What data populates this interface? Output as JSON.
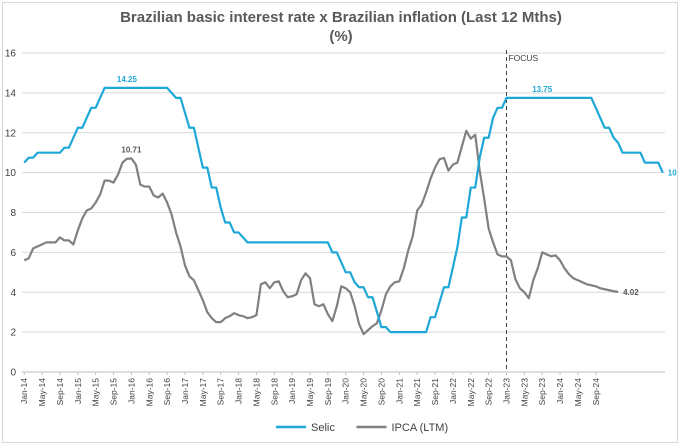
{
  "chart_data": {
    "type": "line",
    "title_line1": "Brazilian basic interest rate x Brazilian inflation (Last 12 Mths)",
    "title_line2": "(%)",
    "xlabel": "",
    "ylabel": "",
    "ylim": [
      0,
      16
    ],
    "yticks": [
      0,
      2,
      4,
      6,
      8,
      10,
      12,
      14,
      16
    ],
    "x_tick_labels": [
      "Jan-14",
      "May-14",
      "Sep-14",
      "Jan-15",
      "May-15",
      "Sep-15",
      "Jan-16",
      "May-16",
      "Sep-16",
      "Jan-17",
      "May-17",
      "Sep-17",
      "Jan-18",
      "May-18",
      "Sep-18",
      "Jan-19",
      "May-19",
      "Sep-19",
      "Jan-20",
      "May-20",
      "Sep-20",
      "Jan-21",
      "May-21",
      "Sep-21",
      "Jan-22",
      "May-22",
      "Sep-22",
      "Jan-23",
      "May-23",
      "Sep-23",
      "Jan-24",
      "May-24",
      "Sep-24"
    ],
    "grid": "horizontal",
    "legend_position": "bottom",
    "series": [
      {
        "name": "Selic",
        "color": "#1ea8d8",
        "values": [
          [
            0,
            10.5
          ],
          [
            1,
            10.75
          ],
          [
            2,
            10.75
          ],
          [
            3,
            11
          ],
          [
            4,
            11
          ],
          [
            5,
            11
          ],
          [
            6,
            11
          ],
          [
            7,
            11
          ],
          [
            8,
            11
          ],
          [
            9,
            11.25
          ],
          [
            10,
            11.25
          ],
          [
            11,
            11.75
          ],
          [
            12,
            12.25
          ],
          [
            13,
            12.25
          ],
          [
            14,
            12.75
          ],
          [
            15,
            13.25
          ],
          [
            16,
            13.25
          ],
          [
            17,
            13.75
          ],
          [
            18,
            14.25
          ],
          [
            19,
            14.25
          ],
          [
            20,
            14.25
          ],
          [
            21,
            14.25
          ],
          [
            22,
            14.25
          ],
          [
            23,
            14.25
          ],
          [
            24,
            14.25
          ],
          [
            25,
            14.25
          ],
          [
            26,
            14.25
          ],
          [
            27,
            14.25
          ],
          [
            28,
            14.25
          ],
          [
            29,
            14.25
          ],
          [
            30,
            14.25
          ],
          [
            31,
            14.25
          ],
          [
            32,
            14.25
          ],
          [
            33,
            14
          ],
          [
            34,
            13.75
          ],
          [
            35,
            13.75
          ],
          [
            36,
            13
          ],
          [
            37,
            12.25
          ],
          [
            38,
            12.25
          ],
          [
            39,
            11.25
          ],
          [
            40,
            10.25
          ],
          [
            41,
            10.25
          ],
          [
            42,
            9.25
          ],
          [
            43,
            9.25
          ],
          [
            44,
            8.25
          ],
          [
            45,
            7.5
          ],
          [
            46,
            7.5
          ],
          [
            47,
            7
          ],
          [
            48,
            7
          ],
          [
            49,
            6.75
          ],
          [
            50,
            6.5
          ],
          [
            51,
            6.5
          ],
          [
            52,
            6.5
          ],
          [
            53,
            6.5
          ],
          [
            54,
            6.5
          ],
          [
            55,
            6.5
          ],
          [
            56,
            6.5
          ],
          [
            57,
            6.5
          ],
          [
            58,
            6.5
          ],
          [
            59,
            6.5
          ],
          [
            60,
            6.5
          ],
          [
            61,
            6.5
          ],
          [
            62,
            6.5
          ],
          [
            63,
            6.5
          ],
          [
            64,
            6.5
          ],
          [
            65,
            6.5
          ],
          [
            66,
            6.5
          ],
          [
            67,
            6.5
          ],
          [
            68,
            6.5
          ],
          [
            69,
            6
          ],
          [
            70,
            6
          ],
          [
            71,
            5.5
          ],
          [
            72,
            5
          ],
          [
            73,
            5
          ],
          [
            74,
            4.5
          ],
          [
            75,
            4.25
          ],
          [
            76,
            4.25
          ],
          [
            77,
            3.75
          ],
          [
            78,
            3.75
          ],
          [
            79,
            3
          ],
          [
            80,
            2.25
          ],
          [
            81,
            2.25
          ],
          [
            82,
            2
          ],
          [
            83,
            2
          ],
          [
            84,
            2
          ],
          [
            85,
            2
          ],
          [
            86,
            2
          ],
          [
            87,
            2
          ],
          [
            88,
            2
          ],
          [
            89,
            2
          ],
          [
            90,
            2
          ],
          [
            91,
            2.75
          ],
          [
            92,
            2.75
          ],
          [
            93,
            3.5
          ],
          [
            94,
            4.25
          ],
          [
            95,
            4.25
          ],
          [
            96,
            5.25
          ],
          [
            97,
            6.25
          ],
          [
            98,
            7.75
          ],
          [
            99,
            7.75
          ],
          [
            100,
            9.25
          ],
          [
            101,
            9.25
          ],
          [
            102,
            10.75
          ],
          [
            103,
            11.75
          ],
          [
            104,
            11.75
          ],
          [
            105,
            12.75
          ],
          [
            106,
            13.25
          ],
          [
            107,
            13.25
          ],
          [
            108,
            13.75
          ],
          [
            109,
            13.75
          ],
          [
            110,
            13.75
          ],
          [
            111,
            13.75
          ],
          [
            112,
            13.75
          ],
          [
            113,
            13.75
          ],
          [
            114,
            13.75
          ],
          [
            115,
            13.75
          ],
          [
            116,
            13.75
          ],
          [
            117,
            13.75
          ],
          [
            118,
            13.75
          ],
          [
            119,
            13.75
          ],
          [
            120,
            13.75
          ],
          [
            121,
            13.75
          ],
          [
            122,
            13.75
          ],
          [
            123,
            13.75
          ],
          [
            124,
            13.75
          ],
          [
            125,
            13.75
          ],
          [
            126,
            13.75
          ],
          [
            127,
            13.75
          ],
          [
            128,
            13.25
          ],
          [
            129,
            12.75
          ],
          [
            130,
            12.25
          ],
          [
            131,
            12.25
          ],
          [
            132,
            11.75
          ],
          [
            133,
            11.5
          ],
          [
            134,
            11
          ],
          [
            135,
            11
          ],
          [
            136,
            11
          ],
          [
            137,
            11
          ],
          [
            138,
            11
          ],
          [
            139,
            10.5
          ],
          [
            140,
            10.5
          ],
          [
            141,
            10.5
          ],
          [
            142,
            10.5
          ],
          [
            143,
            10
          ]
        ]
      },
      {
        "name": "IPCA (LTM)",
        "color": "#808080",
        "values": [
          [
            0,
            5.6
          ],
          [
            1,
            5.7
          ],
          [
            2,
            6.2
          ],
          [
            3,
            6.3
          ],
          [
            4,
            6.4
          ],
          [
            5,
            6.5
          ],
          [
            6,
            6.5
          ],
          [
            7,
            6.5
          ],
          [
            8,
            6.75
          ],
          [
            9,
            6.6
          ],
          [
            10,
            6.6
          ],
          [
            11,
            6.4
          ],
          [
            12,
            7.1
          ],
          [
            13,
            7.7
          ],
          [
            14,
            8.1
          ],
          [
            15,
            8.2
          ],
          [
            16,
            8.5
          ],
          [
            17,
            8.9
          ],
          [
            18,
            9.6
          ],
          [
            19,
            9.6
          ],
          [
            20,
            9.5
          ],
          [
            21,
            9.9
          ],
          [
            22,
            10.5
          ],
          [
            23,
            10.7
          ],
          [
            24,
            10.71
          ],
          [
            25,
            10.4
          ],
          [
            26,
            9.4
          ],
          [
            27,
            9.3
          ],
          [
            28,
            9.3
          ],
          [
            29,
            8.85
          ],
          [
            30,
            8.75
          ],
          [
            31,
            8.95
          ],
          [
            32,
            8.5
          ],
          [
            33,
            7.9
          ],
          [
            34,
            7.0
          ],
          [
            35,
            6.3
          ],
          [
            36,
            5.35
          ],
          [
            37,
            4.8
          ],
          [
            38,
            4.6
          ],
          [
            39,
            4.1
          ],
          [
            40,
            3.6
          ],
          [
            41,
            3.0
          ],
          [
            42,
            2.7
          ],
          [
            43,
            2.5
          ],
          [
            44,
            2.5
          ],
          [
            45,
            2.7
          ],
          [
            46,
            2.8
          ],
          [
            47,
            2.95
          ],
          [
            48,
            2.85
          ],
          [
            49,
            2.8
          ],
          [
            50,
            2.7
          ],
          [
            51,
            2.75
          ],
          [
            52,
            2.85
          ],
          [
            53,
            4.4
          ],
          [
            54,
            4.5
          ],
          [
            55,
            4.2
          ],
          [
            56,
            4.5
          ],
          [
            57,
            4.55
          ],
          [
            58,
            4.05
          ],
          [
            59,
            3.75
          ],
          [
            60,
            3.8
          ],
          [
            61,
            3.9
          ],
          [
            62,
            4.6
          ],
          [
            63,
            4.95
          ],
          [
            64,
            4.7
          ],
          [
            65,
            3.4
          ],
          [
            66,
            3.3
          ],
          [
            67,
            3.4
          ],
          [
            68,
            2.9
          ],
          [
            69,
            2.55
          ],
          [
            70,
            3.3
          ],
          [
            71,
            4.3
          ],
          [
            72,
            4.2
          ],
          [
            73,
            4.0
          ],
          [
            74,
            3.3
          ],
          [
            75,
            2.4
          ],
          [
            76,
            1.9
          ],
          [
            77,
            2.1
          ],
          [
            78,
            2.3
          ],
          [
            79,
            2.45
          ],
          [
            80,
            3.1
          ],
          [
            81,
            3.9
          ],
          [
            82,
            4.3
          ],
          [
            83,
            4.5
          ],
          [
            84,
            4.55
          ],
          [
            85,
            5.2
          ],
          [
            86,
            6.1
          ],
          [
            87,
            6.8
          ],
          [
            88,
            8.1
          ],
          [
            89,
            8.4
          ],
          [
            90,
            9.0
          ],
          [
            91,
            9.7
          ],
          [
            92,
            10.25
          ],
          [
            93,
            10.67
          ],
          [
            94,
            10.74
          ],
          [
            95,
            10.1
          ],
          [
            96,
            10.4
          ],
          [
            97,
            10.5
          ],
          [
            98,
            11.3
          ],
          [
            99,
            12.1
          ],
          [
            100,
            11.7
          ],
          [
            101,
            11.9
          ],
          [
            102,
            10.1
          ],
          [
            103,
            8.7
          ],
          [
            104,
            7.2
          ],
          [
            105,
            6.5
          ],
          [
            106,
            5.9
          ],
          [
            107,
            5.8
          ],
          [
            108,
            5.8
          ],
          [
            109,
            5.6
          ],
          [
            110,
            4.65
          ],
          [
            111,
            4.2
          ],
          [
            112,
            4.0
          ],
          [
            113,
            3.7
          ],
          [
            114,
            4.6
          ],
          [
            115,
            5.2
          ],
          [
            116,
            6.0
          ],
          [
            117,
            5.9
          ],
          [
            118,
            5.8
          ],
          [
            119,
            5.85
          ],
          [
            120,
            5.6
          ],
          [
            121,
            5.2
          ],
          [
            122,
            4.9
          ],
          [
            123,
            4.7
          ],
          [
            124,
            4.6
          ],
          [
            125,
            4.5
          ],
          [
            126,
            4.4
          ],
          [
            127,
            4.35
          ],
          [
            128,
            4.3
          ],
          [
            129,
            4.2
          ],
          [
            130,
            4.15
          ],
          [
            131,
            4.1
          ],
          [
            132,
            4.05
          ],
          [
            133,
            4.02
          ]
        ]
      }
    ],
    "annotations": [
      {
        "label": "14.25",
        "series": "Selic",
        "x": 23,
        "y": 14.25
      },
      {
        "label": "10.71",
        "series": "IPCA (LTM)",
        "x": 24,
        "y": 10.71
      },
      {
        "label": "13.75",
        "series": "Selic",
        "x": 116,
        "y": 13.75
      },
      {
        "label": "10",
        "series": "Selic",
        "x": 143,
        "y": 10
      },
      {
        "label": "4.02",
        "series": "IPCA (LTM)",
        "x": 133,
        "y": 4.02
      }
    ],
    "focus_marker": {
      "label": "FOCUS",
      "x": 108,
      "color": "#404040"
    }
  }
}
